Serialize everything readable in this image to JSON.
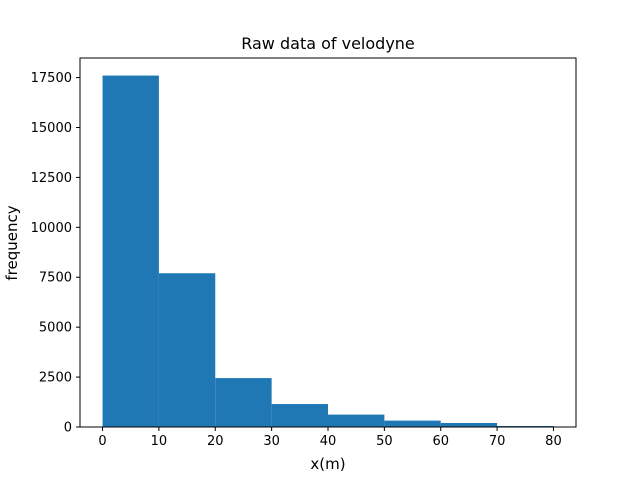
{
  "chart_data": {
    "type": "bar",
    "title": "Raw data of velodyne",
    "xlabel": "x(m)",
    "ylabel": "frequency",
    "bins": [
      {
        "start": 0,
        "end": 10,
        "value": 17600
      },
      {
        "start": 10,
        "end": 20,
        "value": 7700
      },
      {
        "start": 20,
        "end": 30,
        "value": 2450
      },
      {
        "start": 30,
        "end": 40,
        "value": 1150
      },
      {
        "start": 40,
        "end": 50,
        "value": 620
      },
      {
        "start": 50,
        "end": 60,
        "value": 320
      },
      {
        "start": 60,
        "end": 70,
        "value": 200
      },
      {
        "start": 70,
        "end": 80,
        "value": 50
      }
    ],
    "xlim": [
      -4,
      84
    ],
    "ylim": [
      0,
      18480
    ],
    "xticks": [
      0,
      10,
      20,
      30,
      40,
      50,
      60,
      70,
      80
    ],
    "xtick_labels": [
      "0",
      "10",
      "20",
      "30",
      "40",
      "50",
      "60",
      "70",
      "80"
    ],
    "yticks": [
      0,
      2500,
      5000,
      7500,
      10000,
      12500,
      15000,
      17500
    ],
    "ytick_labels": [
      "0",
      "2500",
      "5000",
      "7500",
      "10000",
      "12500",
      "15000",
      "17500"
    ],
    "bar_color": "#1f77b4",
    "grid": false
  }
}
